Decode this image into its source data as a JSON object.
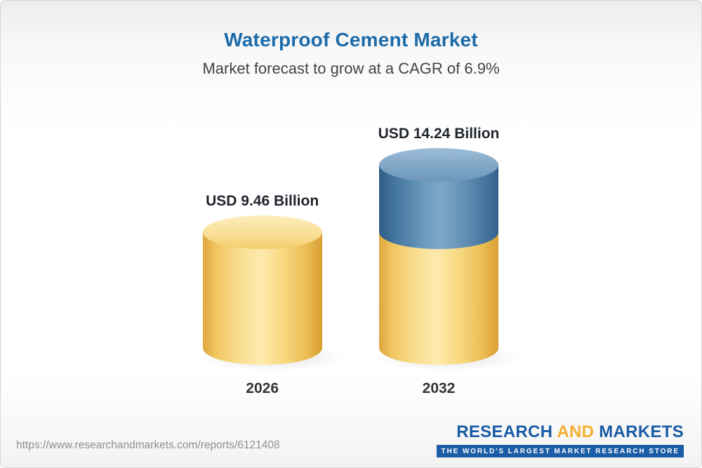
{
  "header": {
    "title": "Waterproof Cement Market",
    "subtitle": "Market forecast to grow at a CAGR of 6.9%"
  },
  "chart_data": {
    "type": "bar",
    "variant": "3d-cylinder-stacked",
    "title": "Waterproof Cement Market",
    "subtitle": "Market forecast to grow at a CAGR of 6.9%",
    "cagr_percent": 6.9,
    "unit": "USD Billion",
    "categories": [
      "2026",
      "2032"
    ],
    "values": [
      9.46,
      14.24
    ],
    "value_labels": [
      "USD 9.46 Billion",
      "USD 14.24 Billion"
    ],
    "series": [
      {
        "name": "base-value",
        "color": "#F6CE6C",
        "values": [
          9.46,
          9.46
        ]
      },
      {
        "name": "growth-to-forecast",
        "color": "#4C7EA6",
        "values": [
          0,
          4.78
        ]
      }
    ],
    "legend": false,
    "axes": false,
    "gridlines": false
  },
  "footer": {
    "url": "https://www.researchandmarkets.com/reports/6121408",
    "logo": {
      "research": "RESEARCH",
      "and": "AND",
      "markets": "MARKETS",
      "tagline": "THE WORLD'S LARGEST MARKET RESEARCH STORE"
    }
  },
  "colors": {
    "title_blue": "#1C6BA9",
    "subtitle_gray": "#434343",
    "bar_yellow": "#F6CE6C",
    "bar_blue": "#4C7EA6",
    "logo_blue": "#1A5CA5",
    "logo_yellow": "#F2B02F",
    "url_gray": "#8F8F8F"
  }
}
